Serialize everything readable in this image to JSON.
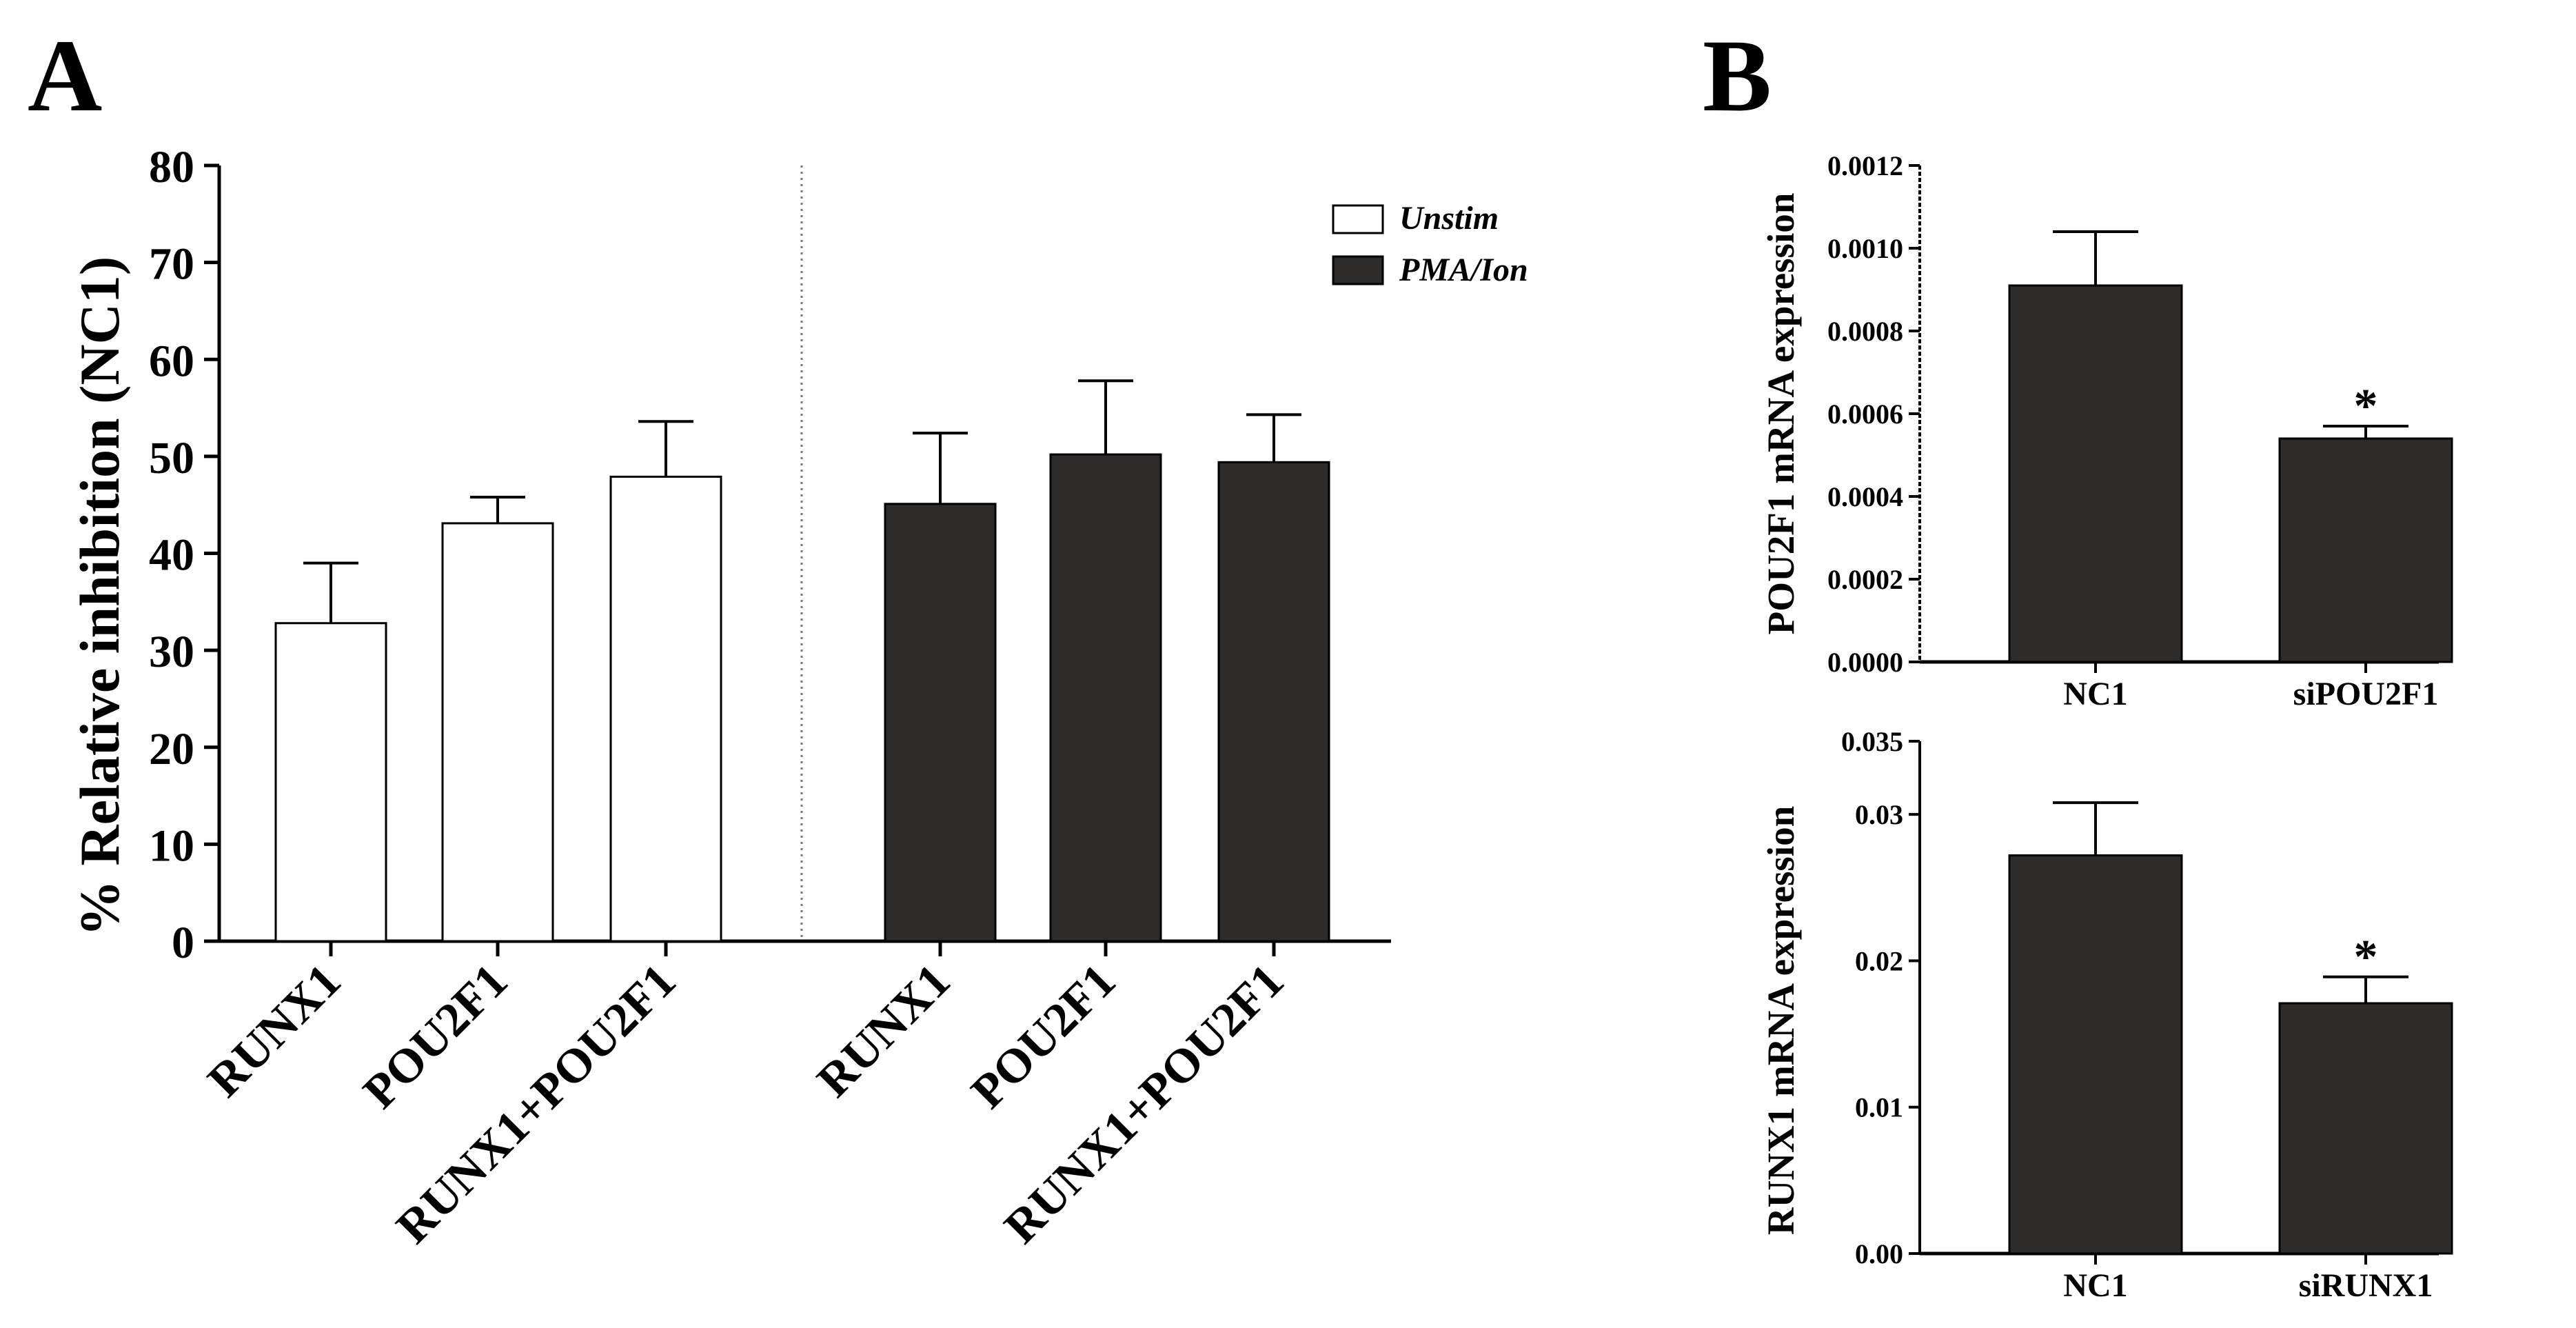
{
  "panels": {
    "a": "A",
    "b": "B"
  },
  "colors": {
    "unstim_fill": "#ffffff",
    "stim_fill": "#2e2b2b",
    "axis": "#000000"
  },
  "chart_data": [
    {
      "type": "bar",
      "panel": "A",
      "title": "",
      "xlabel": "",
      "ylabel": "% Relative inhibition (NC1)",
      "ylim": [
        0,
        80
      ],
      "yticks": [
        "0",
        "10",
        "20",
        "30",
        "40",
        "50",
        "60",
        "70",
        "80"
      ],
      "categories": [
        "RUNX1",
        "POU2F1",
        "RUNX1+POU2F1"
      ],
      "series": [
        {
          "name": "Unstim",
          "values": [
            32.8,
            43.1,
            47.9
          ],
          "errors": [
            6.2,
            2.7,
            5.7
          ]
        },
        {
          "name": "PMA/Ion",
          "values": [
            45.1,
            50.2,
            49.4
          ],
          "errors": [
            7.3,
            7.6,
            4.9
          ]
        }
      ],
      "legend": [
        "Unstim",
        "PMA/Ion"
      ],
      "legend_position": "top-right"
    },
    {
      "type": "bar",
      "panel": "B",
      "title": "",
      "xlabel": "",
      "ylabel": "POU2F1 mRNA expression",
      "ylim": [
        0,
        0.0012
      ],
      "yticks": [
        "0.0000",
        "0.0002",
        "0.0004",
        "0.0006",
        "0.0008",
        "0.0010",
        "0.0012"
      ],
      "categories": [
        "NC1",
        "siPOU2F1"
      ],
      "values": [
        0.00091,
        0.00054
      ],
      "errors": [
        0.00013,
        3e-05
      ],
      "annotations": [
        "",
        "*"
      ]
    },
    {
      "type": "bar",
      "panel": "B",
      "title": "",
      "xlabel": "",
      "ylabel": "RUNX1 mRNA expression",
      "ylim": [
        0,
        0.035
      ],
      "yticks": [
        "0.00",
        "0.01",
        "0.02",
        "0.03",
        "0.035"
      ],
      "ytick_values": [
        0,
        0.01,
        0.02,
        0.03,
        0.035
      ],
      "categories": [
        "NC1",
        "siRUNX1"
      ],
      "values": [
        0.0272,
        0.0171
      ],
      "errors": [
        0.0036,
        0.0018
      ],
      "annotations": [
        "",
        "*"
      ]
    }
  ]
}
